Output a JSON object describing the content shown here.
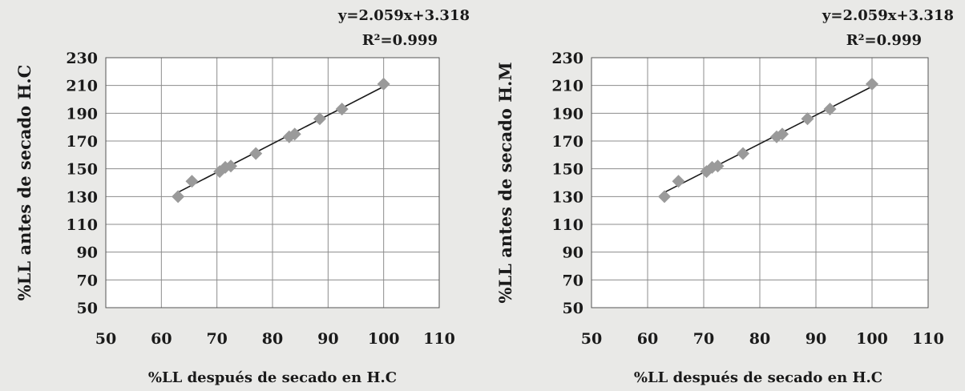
{
  "chart_data": [
    {
      "type": "scatter",
      "title": "",
      "xlabel": "%LL después de secado en H.C",
      "ylabel": "%LL antes de secado H.C",
      "xlim": [
        50,
        110
      ],
      "ylim": [
        50,
        230
      ],
      "xticks": [
        "50",
        "60",
        "70",
        "80",
        "90",
        "100",
        "110"
      ],
      "yticks": [
        "230",
        "210",
        "190",
        "170",
        "150",
        "130",
        "110",
        "90",
        "70",
        "50"
      ],
      "grid": true,
      "legend": "none",
      "marker_color": "#9a9a9a",
      "trendline_color": "#1a1a1a",
      "trendline": {
        "slope": 2.059,
        "intercept": 3.318,
        "x_range": [
          63,
          100
        ]
      },
      "equation": "y=2.059x+3.318",
      "r_squared": "R²=0.999",
      "points": [
        {
          "x": 63,
          "y": 130
        },
        {
          "x": 65.5,
          "y": 141
        },
        {
          "x": 70.5,
          "y": 148
        },
        {
          "x": 71.5,
          "y": 151
        },
        {
          "x": 72.5,
          "y": 152
        },
        {
          "x": 77,
          "y": 161
        },
        {
          "x": 83,
          "y": 173
        },
        {
          "x": 84,
          "y": 175
        },
        {
          "x": 88.5,
          "y": 186
        },
        {
          "x": 92.5,
          "y": 193
        },
        {
          "x": 100,
          "y": 211
        }
      ]
    },
    {
      "type": "scatter",
      "title": "",
      "xlabel": "%LL después de secado en H.C",
      "ylabel": "%LL antes de secado H.M",
      "xlim": [
        50,
        110
      ],
      "ylim": [
        50,
        230
      ],
      "xticks": [
        "50",
        "60",
        "70",
        "80",
        "90",
        "100",
        "110"
      ],
      "yticks": [
        "230",
        "210",
        "190",
        "170",
        "150",
        "130",
        "110",
        "90",
        "70",
        "50"
      ],
      "grid": true,
      "legend": "none",
      "marker_color": "#9a9a9a",
      "trendline_color": "#1a1a1a",
      "trendline": {
        "slope": 2.059,
        "intercept": 3.318,
        "x_range": [
          63,
          100
        ]
      },
      "equation": "y=2.059x+3.318",
      "r_squared": "R²=0.999",
      "points": [
        {
          "x": 63,
          "y": 130
        },
        {
          "x": 65.5,
          "y": 141
        },
        {
          "x": 70.5,
          "y": 148
        },
        {
          "x": 71.5,
          "y": 151
        },
        {
          "x": 72.5,
          "y": 152
        },
        {
          "x": 77,
          "y": 161
        },
        {
          "x": 83,
          "y": 173
        },
        {
          "x": 84,
          "y": 175
        },
        {
          "x": 88.5,
          "y": 186
        },
        {
          "x": 92.5,
          "y": 193
        },
        {
          "x": 100,
          "y": 211
        }
      ]
    }
  ]
}
